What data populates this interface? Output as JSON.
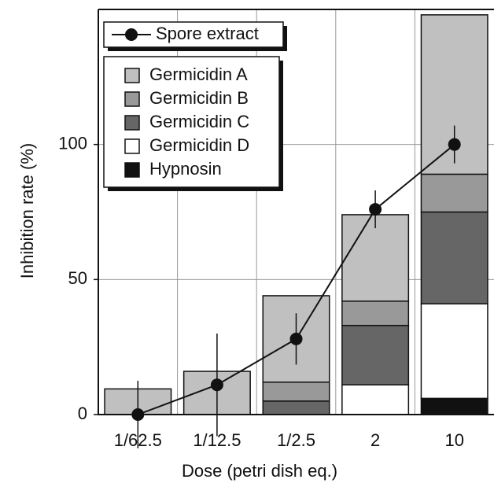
{
  "chart_data": {
    "type": "bar",
    "stacked": true,
    "x_label": "Dose (petri dish eq.)",
    "y_label": "Inhibition rate (%)",
    "categories": [
      "1/62.5",
      "1/12.5",
      "1/2.5",
      "2",
      "10"
    ],
    "series": [
      {
        "name": "Hypnosin",
        "color": "#111111",
        "values": [
          0,
          0,
          0,
          0,
          6
        ]
      },
      {
        "name": "Germicidin D",
        "color": "#ffffff",
        "values": [
          0,
          0,
          0,
          11,
          35
        ]
      },
      {
        "name": "Germicidin C",
        "color": "#666666",
        "values": [
          0,
          0,
          5,
          22,
          34
        ]
      },
      {
        "name": "Germicidin B",
        "color": "#999999",
        "values": [
          0,
          0,
          7,
          9,
          14
        ]
      },
      {
        "name": "Germicidin A",
        "color": "#c0c0c0",
        "values": [
          9.5,
          16,
          32,
          32,
          59
        ]
      }
    ],
    "line": {
      "name": "Spore extract",
      "color": "#111111",
      "values": [
        0,
        11,
        28,
        76,
        100
      ],
      "errors": [
        12.5,
        19,
        9.5,
        7,
        7
      ]
    },
    "ylim": [
      0,
      150
    ],
    "yticks": [
      0,
      50,
      100
    ],
    "grid": true,
    "legend": "top-left"
  }
}
